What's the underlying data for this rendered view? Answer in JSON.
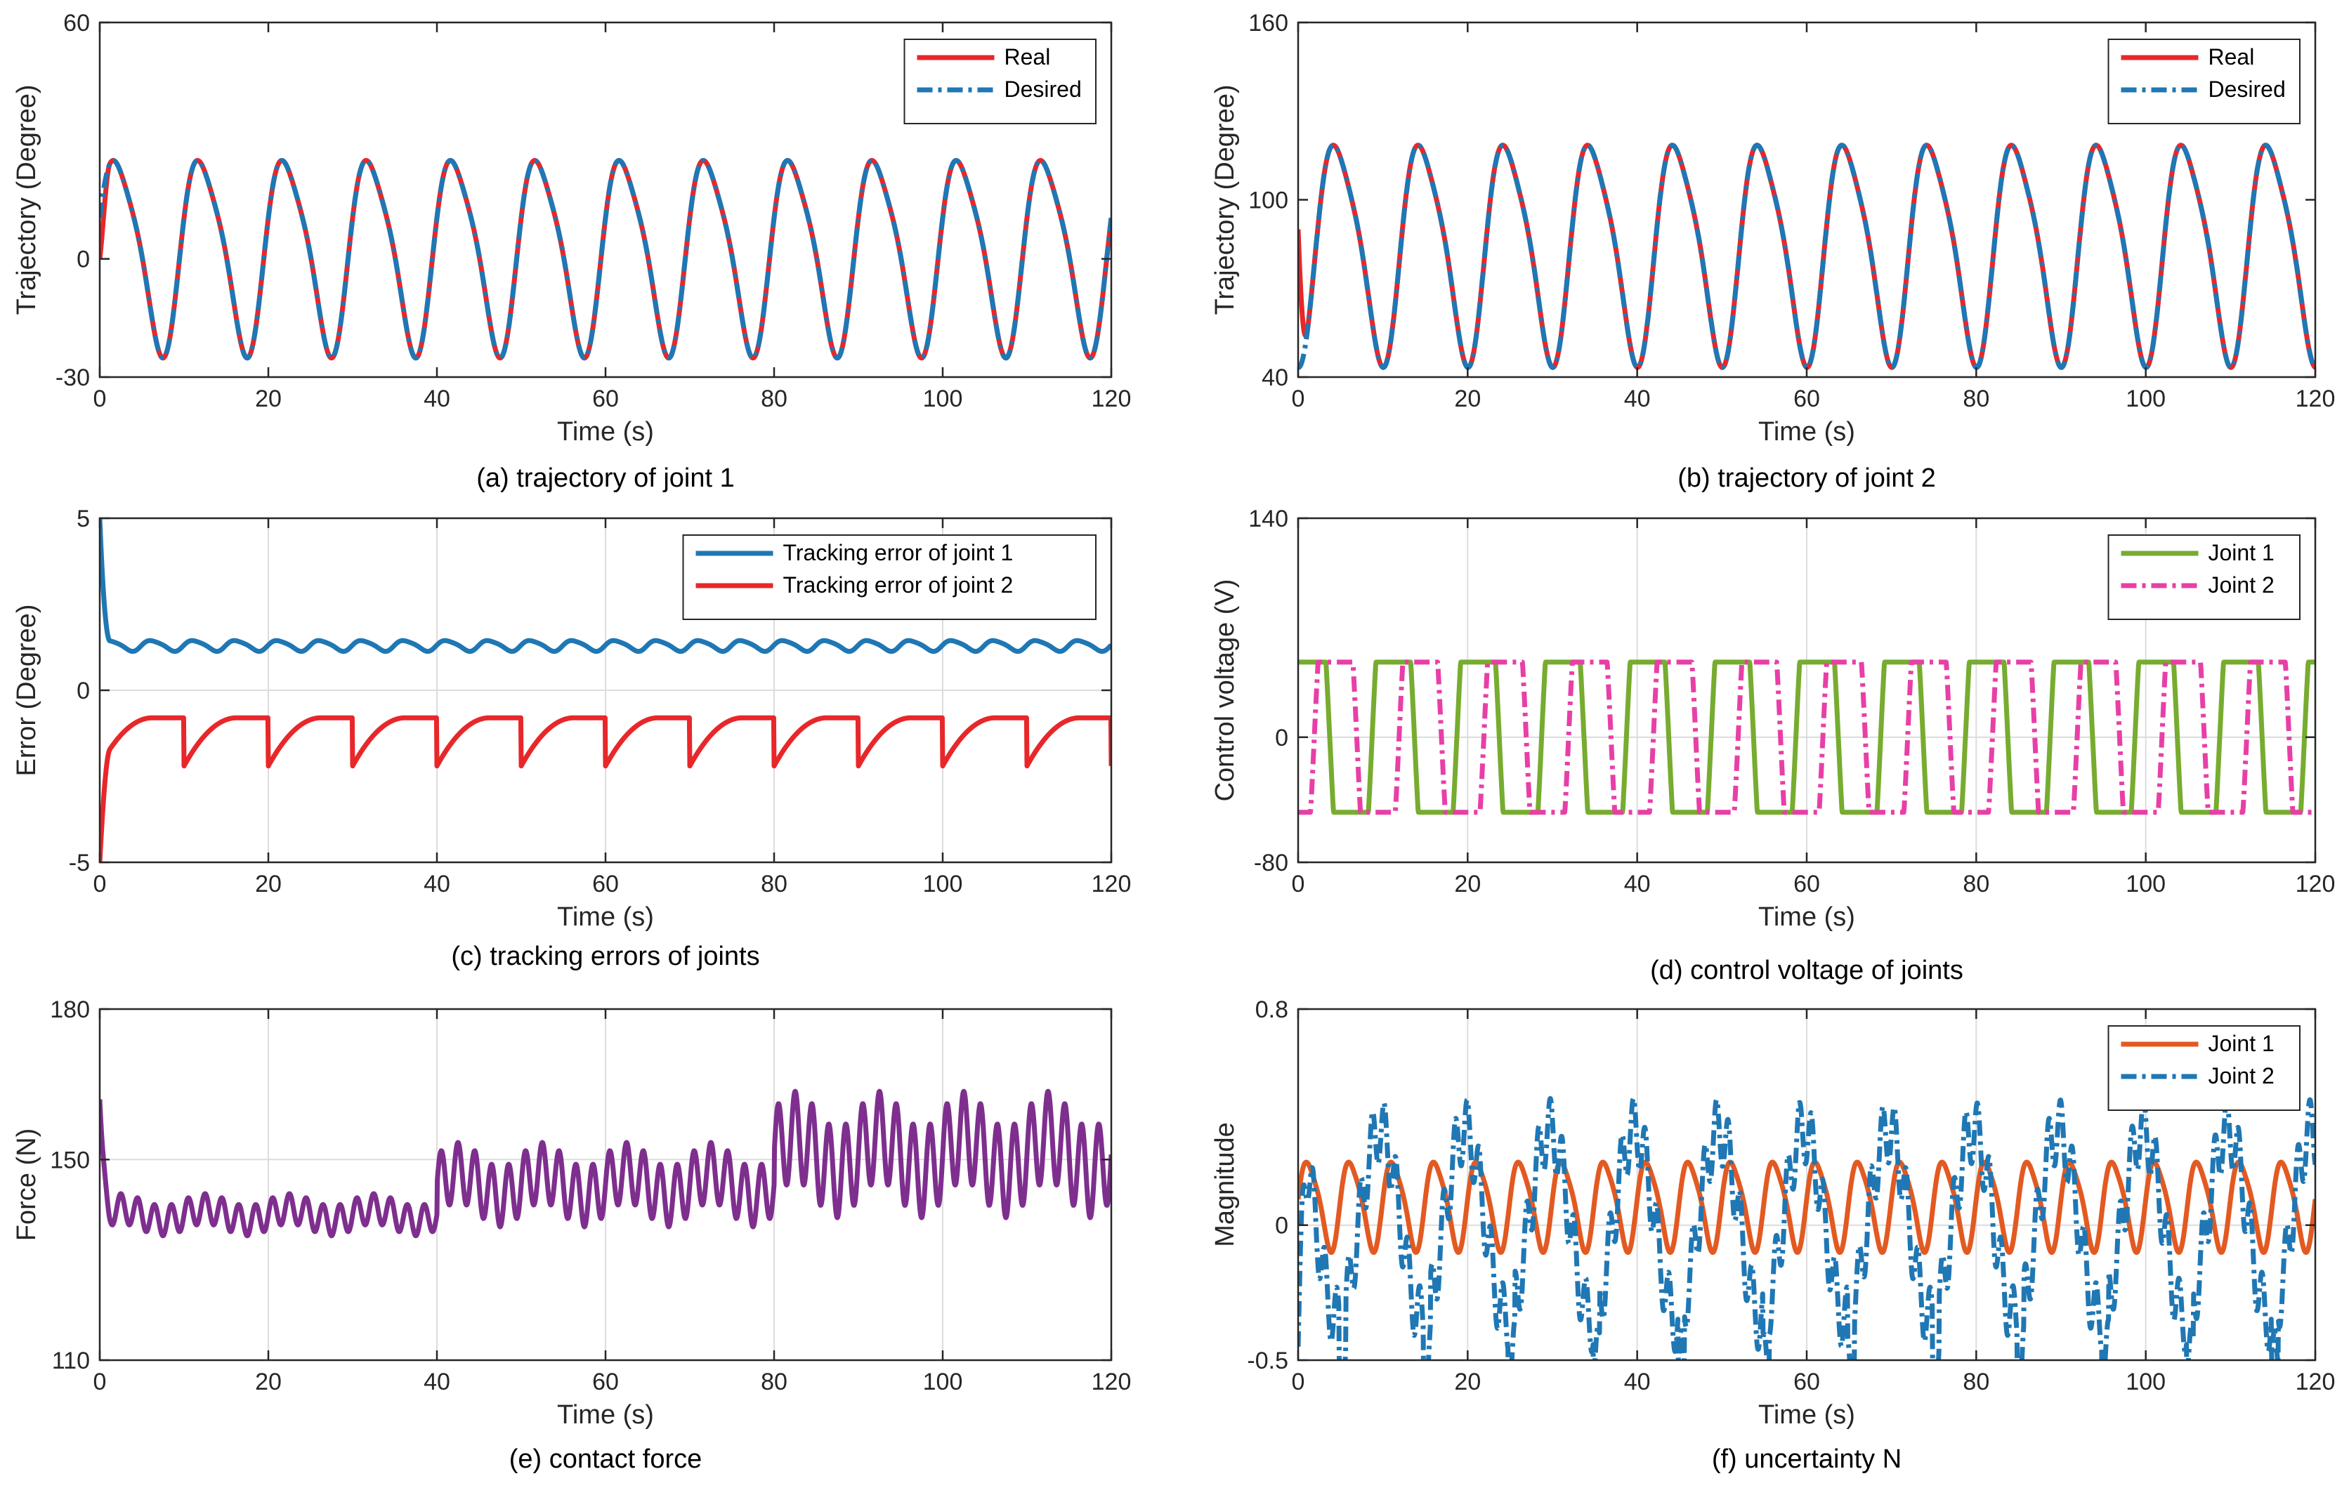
{
  "colors": {
    "red": "#e8272a",
    "blue": "#1f77b4",
    "green": "#77ac30",
    "pink": "#e83fa7",
    "purple": "#7e2f8e",
    "orange": "#e25a22"
  },
  "chart_data": [
    {
      "type": "line",
      "caption": "(a) trajectory of joint 1",
      "xlabel": "Time (s)",
      "ylabel": "Trajectory (Degree)",
      "xlim": [
        0,
        120
      ],
      "ylim": [
        -30,
        60
      ],
      "xticks": [
        "0",
        "20",
        "40",
        "60",
        "80",
        "100",
        "120"
      ],
      "yticks": [
        "-30",
        "0",
        "60"
      ],
      "grid": false,
      "legend": "top-right",
      "series": [
        {
          "name": "Real",
          "color": "red",
          "style": "solid",
          "waveform": "sine",
          "period": 10,
          "amplitude": 24,
          "offset": 2,
          "phase": 0.2,
          "start": 0,
          "transient": "start-near-0"
        },
        {
          "name": "Desired",
          "color": "blue",
          "style": "dashdot",
          "waveform": "sine",
          "period": 10,
          "amplitude": 24,
          "offset": 2,
          "phase": 0.2
        }
      ]
    },
    {
      "type": "line",
      "caption": "(b) trajectory of joint 2",
      "xlabel": "Time (s)",
      "ylabel": "Trajectory (Degree)",
      "xlim": [
        0,
        120
      ],
      "ylim": [
        40,
        160
      ],
      "xticks": [
        "0",
        "20",
        "40",
        "60",
        "80",
        "100",
        "120"
      ],
      "yticks": [
        "40",
        "100",
        "160"
      ],
      "grid": false,
      "legend": "top-right",
      "series": [
        {
          "name": "Real",
          "color": "red",
          "style": "solid",
          "waveform": "sine",
          "period": 10,
          "amplitude": 36,
          "offset": 84,
          "phase": -1.4,
          "transient": "start-near-90"
        },
        {
          "name": "Desired",
          "color": "blue",
          "style": "dashdot",
          "waveform": "sine",
          "period": 10,
          "amplitude": 36,
          "offset": 84,
          "phase": -1.4
        }
      ]
    },
    {
      "type": "line",
      "caption": "(c) tracking errors of joints",
      "xlabel": "Time (s)",
      "ylabel": "Error (Degree)",
      "xlim": [
        0,
        120
      ],
      "ylim": [
        -5,
        5
      ],
      "xticks": [
        "0",
        "20",
        "40",
        "60",
        "80",
        "100",
        "120"
      ],
      "yticks": [
        "-5",
        "0",
        "5"
      ],
      "grid": true,
      "legend": "top-right",
      "series": [
        {
          "name": "Tracking error of joint 1",
          "color": "blue",
          "style": "solid",
          "waveform": "sine",
          "period": 5,
          "amplitude": 0.15,
          "offset": 1.3,
          "transient": "start-5"
        },
        {
          "name": "Tracking error of joint 2",
          "color": "red",
          "style": "solid",
          "waveform": "cusp",
          "period": 10,
          "amplitude": 1.4,
          "offset": -0.8,
          "transient": "start-neg5"
        }
      ]
    },
    {
      "type": "line",
      "caption": "(d) control voltage of joints",
      "xlabel": "Time (s)",
      "ylabel": "Control voltage (V)",
      "xlim": [
        0,
        120
      ],
      "ylim": [
        -80,
        140
      ],
      "xticks": [
        "0",
        "20",
        "40",
        "60",
        "80",
        "100",
        "120"
      ],
      "yticks": [
        "-80",
        "0",
        "140"
      ],
      "grid": true,
      "legend": "top-right",
      "series": [
        {
          "name": "Joint 1",
          "color": "green",
          "style": "solid",
          "waveform": "saturated",
          "period": 10,
          "amplitude": 90,
          "clip": 48,
          "phase": 0.8
        },
        {
          "name": "Joint 2",
          "color": "pink",
          "style": "dashdot",
          "waveform": "saturated",
          "period": 10,
          "amplitude": 90,
          "clip": 48,
          "phase": -1.2
        }
      ]
    },
    {
      "type": "line",
      "caption": "(e) contact force",
      "xlabel": "Time (s)",
      "ylabel": "Force (N)",
      "xlim": [
        0,
        120
      ],
      "ylim": [
        110,
        180
      ],
      "xticks": [
        "0",
        "20",
        "40",
        "60",
        "80",
        "100",
        "120"
      ],
      "yticks": [
        "110",
        "150",
        "180"
      ],
      "grid": true,
      "legend": "none",
      "series": [
        {
          "name": "",
          "color": "purple",
          "style": "solid",
          "waveform": "force",
          "levels": [
            {
              "until": 40,
              "center": 139,
              "amp": 3
            },
            {
              "until": 80,
              "center": 145,
              "amp": 6
            },
            {
              "until": 120,
              "center": 151,
              "amp": 9
            }
          ],
          "period": 2,
          "transient": "start-162"
        }
      ]
    },
    {
      "type": "line",
      "caption": "(f) uncertainty N",
      "xlabel": "Time (s)",
      "ylabel": "Magnitude",
      "xlim": [
        0,
        120
      ],
      "ylim": [
        -0.5,
        0.8
      ],
      "xticks": [
        "0",
        "20",
        "40",
        "60",
        "80",
        "100",
        "120"
      ],
      "yticks": [
        "-0.5",
        "0",
        "0.8"
      ],
      "grid": true,
      "legend": "top-right",
      "series": [
        {
          "name": "Joint 1",
          "color": "orange",
          "style": "solid",
          "waveform": "sine",
          "period": 5,
          "amplitude": 0.16,
          "offset": 0.08
        },
        {
          "name": "Joint 2",
          "color": "blue",
          "style": "dashdot",
          "waveform": "spiky",
          "period": 10,
          "amplitude": 0.35,
          "offset": 0.0,
          "transient": "start-neg45"
        }
      ]
    }
  ]
}
